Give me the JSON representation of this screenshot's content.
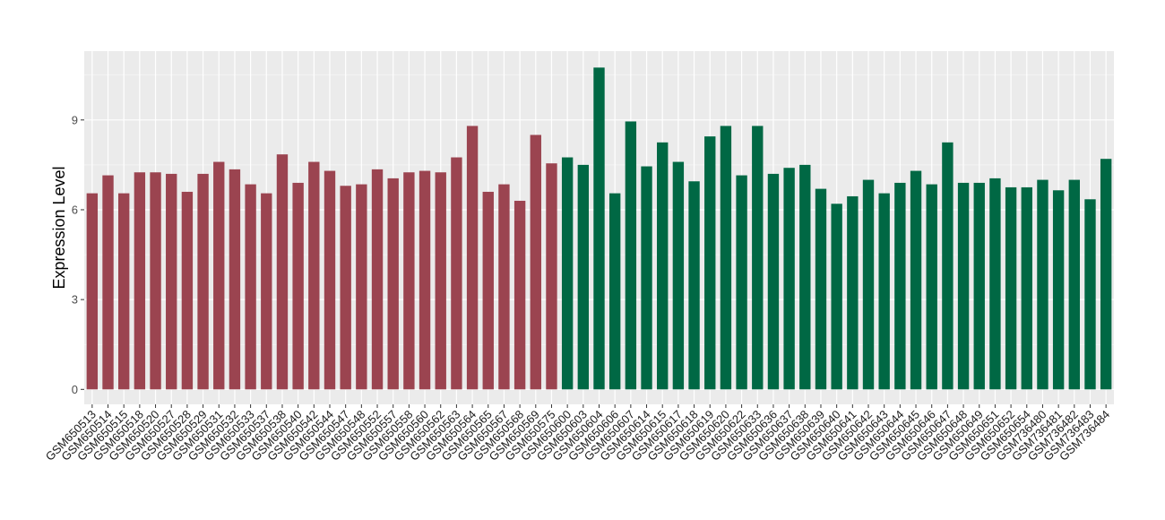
{
  "chart_data": {
    "type": "bar",
    "title": "",
    "xlabel": "",
    "ylabel": "Expression Level",
    "ylim": [
      -0.5,
      11.3
    ],
    "yticks": [
      0,
      3,
      6,
      9
    ],
    "grid": true,
    "legend": "none",
    "colors": {
      "group1": "#9b4450",
      "group2": "#006844",
      "panel_bg": "#ebebeb",
      "grid_major": "#ffffff",
      "grid_minor": "#f5f5f5"
    },
    "categories": [
      "GSM650513",
      "GSM650514",
      "GSM650515",
      "GSM650518",
      "GSM650520",
      "GSM650527",
      "GSM650528",
      "GSM650529",
      "GSM650531",
      "GSM650532",
      "GSM650533",
      "GSM650537",
      "GSM650538",
      "GSM650540",
      "GSM650542",
      "GSM650544",
      "GSM650547",
      "GSM650548",
      "GSM650552",
      "GSM650557",
      "GSM650558",
      "GSM650560",
      "GSM650562",
      "GSM650563",
      "GSM650564",
      "GSM650565",
      "GSM650567",
      "GSM650568",
      "GSM650569",
      "GSM650575",
      "GSM650600",
      "GSM650603",
      "GSM650604",
      "GSM650606",
      "GSM650607",
      "GSM650614",
      "GSM650615",
      "GSM650617",
      "GSM650618",
      "GSM650619",
      "GSM650620",
      "GSM650622",
      "GSM650633",
      "GSM650636",
      "GSM650637",
      "GSM650638",
      "GSM650639",
      "GSM650640",
      "GSM650641",
      "GSM650642",
      "GSM650643",
      "GSM650644",
      "GSM650645",
      "GSM650646",
      "GSM650647",
      "GSM650648",
      "GSM650649",
      "GSM650651",
      "GSM650652",
      "GSM650654",
      "GSM736480",
      "GSM736481",
      "GSM736482",
      "GSM736483",
      "GSM736484"
    ],
    "values": [
      6.55,
      7.15,
      6.55,
      7.25,
      7.25,
      7.2,
      6.6,
      7.2,
      7.6,
      7.35,
      6.85,
      6.55,
      7.85,
      6.9,
      7.6,
      7.3,
      6.8,
      6.85,
      7.35,
      7.05,
      7.25,
      7.3,
      7.25,
      7.75,
      8.8,
      6.6,
      6.85,
      6.3,
      8.5,
      7.55,
      7.75,
      7.5,
      10.75,
      6.55,
      8.95,
      7.45,
      8.25,
      7.6,
      6.95,
      8.45,
      8.8,
      7.15,
      8.8,
      7.2,
      7.4,
      7.5,
      6.7,
      6.2,
      6.45,
      7.0,
      6.55,
      6.9,
      7.3,
      6.85,
      8.25,
      6.9,
      6.9,
      7.05,
      6.75,
      6.75,
      7.0,
      6.65,
      7.0,
      6.35,
      7.7
    ],
    "groups": [
      "group1",
      "group1",
      "group1",
      "group1",
      "group1",
      "group1",
      "group1",
      "group1",
      "group1",
      "group1",
      "group1",
      "group1",
      "group1",
      "group1",
      "group1",
      "group1",
      "group1",
      "group1",
      "group1",
      "group1",
      "group1",
      "group1",
      "group1",
      "group1",
      "group1",
      "group1",
      "group1",
      "group1",
      "group1",
      "group1",
      "group2",
      "group2",
      "group2",
      "group2",
      "group2",
      "group2",
      "group2",
      "group2",
      "group2",
      "group2",
      "group2",
      "group2",
      "group2",
      "group2",
      "group2",
      "group2",
      "group2",
      "group2",
      "group2",
      "group2",
      "group2",
      "group2",
      "group2",
      "group2",
      "group2",
      "group2",
      "group2",
      "group2",
      "group2",
      "group2",
      "group2",
      "group2",
      "group2",
      "group2",
      "group2"
    ]
  }
}
